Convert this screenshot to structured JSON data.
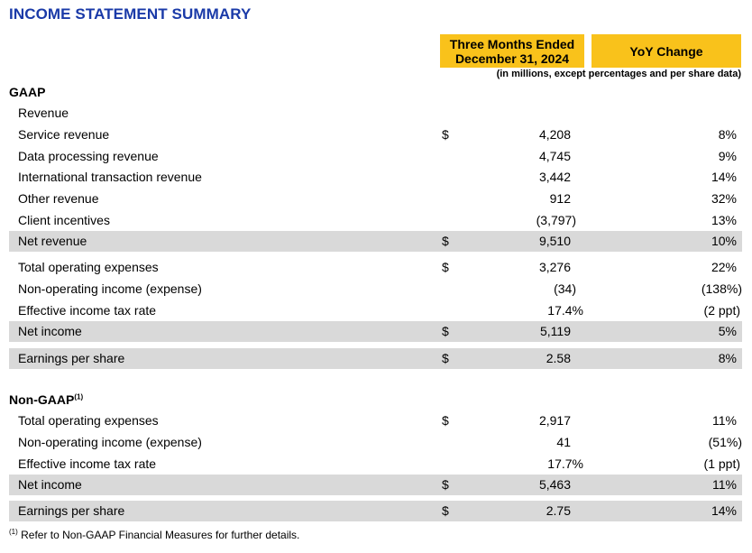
{
  "title": "INCOME STATEMENT SUMMARY",
  "header": {
    "period_line1": "Three Months Ended",
    "period_line2": "December 31, 2024",
    "yoy": "YoY Change",
    "note": "(in millions, except percentages and per share data)"
  },
  "gaap": {
    "label": "GAAP",
    "rows": [
      {
        "label": "Revenue",
        "cur": "",
        "val": "",
        "yoy": ""
      },
      {
        "label": "Service revenue",
        "cur": "$",
        "val": "4,208",
        "yoy": "8%"
      },
      {
        "label": "Data processing revenue",
        "cur": "",
        "val": "4,745",
        "yoy": "9%"
      },
      {
        "label": "International transaction revenue",
        "cur": "",
        "val": "3,442",
        "yoy": "14%"
      },
      {
        "label": "Other revenue",
        "cur": "",
        "val": "912",
        "yoy": "32%"
      },
      {
        "label": "Client incentives",
        "cur": "",
        "val": "(3,797)",
        "yoy": "13%"
      },
      {
        "label": "Net revenue",
        "cur": "$",
        "val": "9,510",
        "yoy": "10%"
      },
      {
        "label": "Total operating expenses",
        "cur": "$",
        "val": "3,276",
        "yoy": "22%"
      },
      {
        "label": "Non-operating income (expense)",
        "cur": "",
        "val": "(34)",
        "yoy": "(138%)"
      },
      {
        "label": "Effective income tax rate",
        "cur": "",
        "val": "17.4%",
        "yoy": "(2 ppt)"
      },
      {
        "label": "Net income",
        "cur": "$",
        "val": "5,119",
        "yoy": "5%"
      },
      {
        "label": "Earnings per share",
        "cur": "$",
        "val": "2.58",
        "yoy": "8%"
      }
    ]
  },
  "non_gaap": {
    "label": "Non-GAAP",
    "sup": "(1)",
    "rows": [
      {
        "label": "Total operating expenses",
        "cur": "$",
        "val": "2,917",
        "yoy": "11%"
      },
      {
        "label": "Non-operating income (expense)",
        "cur": "",
        "val": "41",
        "yoy": "(51%)"
      },
      {
        "label": "Effective income tax rate",
        "cur": "",
        "val": "17.7%",
        "yoy": "(1 ppt)"
      },
      {
        "label": "Net income",
        "cur": "$",
        "val": "5,463",
        "yoy": "11%"
      },
      {
        "label": "Earnings per share",
        "cur": "$",
        "val": "2.75",
        "yoy": "14%"
      }
    ]
  },
  "footnote": {
    "sup": "(1)",
    "text": "Refer to Non-GAAP Financial Measures for further details."
  },
  "colors": {
    "title": "#1a3aa8",
    "header_fill": "#f9c21b",
    "shade": "#d9d9d9"
  }
}
